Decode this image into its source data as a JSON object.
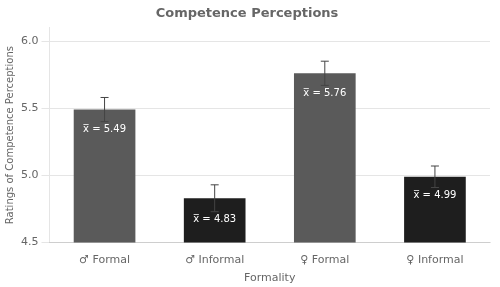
{
  "chart_data": {
    "type": "bar",
    "title": "Competence Perceptions",
    "xlabel": "Formality",
    "ylabel": "Ratings of Competence Perceptions",
    "categories": [
      "♂ Formal",
      "♂ Informal",
      "♀ Formal",
      "♀ Informal"
    ],
    "values": [
      5.49,
      4.83,
      5.76,
      4.99
    ],
    "errors": [
      0.09,
      0.1,
      0.09,
      0.08
    ],
    "colors": [
      "#5a5a5a",
      "#1e1e1e",
      "#5a5a5a",
      "#1e1e1e"
    ],
    "data_labels": true,
    "value_labels": [
      "x̅ = 5.49",
      "x̅ = 4.83",
      "x̅ = 5.76",
      "x̅ = 4.99"
    ],
    "ylim": [
      4.5,
      6.1
    ],
    "yticks": [
      4.5,
      {
        "value": 5,
        "label": "5.0"
      },
      5.5,
      {
        "value": 6,
        "label": "6.0"
      }
    ],
    "grid": true
  }
}
